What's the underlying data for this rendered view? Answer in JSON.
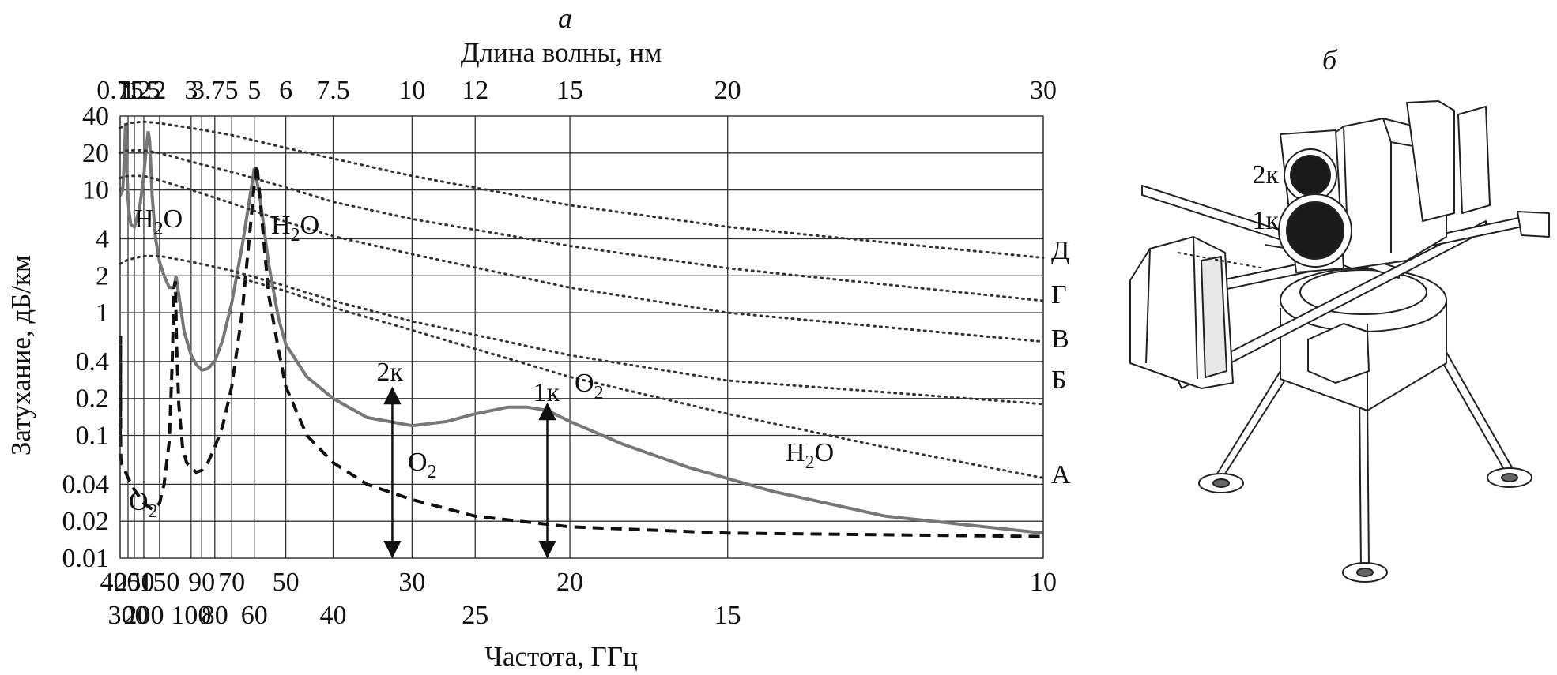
{
  "panel_a_label": "а",
  "panel_b_label": "б",
  "chart_data": {
    "type": "line",
    "title": "",
    "xlabel": "Частота, ГГц",
    "x2label": "Длина волны, нм",
    "ylabel": "Затухание, дБ/км",
    "xscale": "reciprocal",
    "yscale": "log",
    "xlim": [
      400,
      10
    ],
    "ylim": [
      0.01,
      40
    ],
    "grid": true,
    "frequency_ticks_row1": [
      "400",
      "250",
      "150",
      "90",
      "70",
      "50",
      "30",
      "10"
    ],
    "frequency_ticks_row2": [
      "300",
      "200",
      "100",
      "80",
      "60",
      "40",
      "25",
      "15"
    ],
    "frequency_tick_values": [
      400,
      300,
      250,
      200,
      150,
      100,
      90,
      80,
      70,
      60,
      50,
      40,
      30,
      25,
      20,
      15,
      10
    ],
    "frequency_tick_20_label": "20",
    "wavelength_tick_labels": [
      "0.75",
      "1",
      "1.2",
      "1.5",
      "2",
      "3",
      "3.75",
      "5",
      "6",
      "7.5",
      "10",
      "12",
      "15",
      "20",
      "30"
    ],
    "y_tick_labels": [
      "40",
      "20",
      "10",
      "4",
      "2",
      "1",
      "0.4",
      "0.2",
      "0.1",
      "0.04",
      "0.02",
      "0.01"
    ],
    "series": [
      {
        "style": "solid",
        "color": "#777777",
        "x": [
          400,
          380,
          360,
          340,
          330,
          325,
          320,
          310,
          300,
          290,
          275,
          250,
          220,
          200,
          190,
          183,
          178,
          170,
          160,
          150,
          140,
          130,
          122,
          119,
          115,
          108,
          100,
          95,
          90,
          85,
          80,
          75,
          70,
          65,
          62,
          60,
          58,
          55,
          52,
          50,
          45,
          40,
          35,
          30,
          27,
          25,
          23,
          22,
          21,
          20,
          18,
          16,
          14,
          12,
          10
        ],
        "y": [
          10.5,
          9.5,
          10.0,
          18.0,
          30.0,
          35.0,
          30.0,
          14.0,
          8.5,
          6.5,
          5.2,
          5.0,
          7.0,
          13.0,
          22.0,
          30.0,
          25.0,
          9.0,
          4.0,
          2.6,
          2.0,
          1.6,
          1.6,
          2.0,
          1.4,
          0.7,
          0.45,
          0.38,
          0.34,
          0.35,
          0.4,
          0.6,
          1.2,
          3.5,
          8.0,
          15.0,
          9.0,
          2.5,
          0.9,
          0.55,
          0.3,
          0.2,
          0.14,
          0.12,
          0.13,
          0.15,
          0.17,
          0.17,
          0.16,
          0.13,
          0.085,
          0.055,
          0.035,
          0.022,
          0.016
        ]
      },
      {
        "style": "dashed",
        "color": "#111111",
        "x": [
          400,
          397,
          395,
          393,
          392,
          390,
          385,
          370,
          350,
          300,
          250,
          200,
          170,
          150,
          140,
          130,
          125,
          122,
          120,
          118,
          115,
          110,
          105,
          100,
          95,
          90,
          85,
          80,
          75,
          70,
          65,
          62,
          60,
          59,
          57,
          55,
          52,
          50,
          45,
          40,
          35,
          30,
          25,
          20,
          15,
          12,
          10
        ],
        "y": [
          0.1,
          0.12,
          0.65,
          0.12,
          0.08,
          0.065,
          0.062,
          0.058,
          0.055,
          0.045,
          0.036,
          0.028,
          0.025,
          0.028,
          0.04,
          0.09,
          0.4,
          1.6,
          1.8,
          0.5,
          0.18,
          0.08,
          0.06,
          0.055,
          0.05,
          0.052,
          0.06,
          0.08,
          0.12,
          0.25,
          1.0,
          4.0,
          11.0,
          16.0,
          5.0,
          1.4,
          0.5,
          0.25,
          0.1,
          0.06,
          0.04,
          0.03,
          0.022,
          0.018,
          0.016,
          0.0155,
          0.015
        ]
      },
      {
        "style": "dotted",
        "name": "Д",
        "x": [
          400,
          300,
          200,
          150,
          100,
          70,
          50,
          40,
          30,
          20,
          15,
          10
        ],
        "y": [
          32,
          35,
          36,
          35,
          32,
          28,
          22,
          18,
          13,
          7.5,
          5.0,
          2.8
        ]
      },
      {
        "style": "dotted",
        "name": "Г",
        "x": [
          400,
          300,
          200,
          150,
          100,
          70,
          50,
          40,
          30,
          20,
          15,
          10
        ],
        "y": [
          20,
          21,
          21,
          20,
          17,
          14,
          10.5,
          8.0,
          5.8,
          3.5,
          2.3,
          1.25
        ]
      },
      {
        "style": "dotted",
        "name": "В",
        "x": [
          400,
          300,
          200,
          150,
          100,
          70,
          50,
          40,
          30,
          20,
          15,
          10
        ],
        "y": [
          12.5,
          13,
          13,
          12,
          10,
          7.8,
          5.5,
          4.2,
          3.0,
          1.6,
          1.0,
          0.58
        ]
      },
      {
        "style": "dotted",
        "name": "Б",
        "x": [
          400,
          300,
          200,
          150,
          100,
          70,
          50,
          40,
          30,
          20,
          15,
          10
        ],
        "y": [
          2.5,
          2.7,
          2.9,
          2.9,
          2.6,
          2.2,
          1.65,
          1.25,
          0.85,
          0.45,
          0.28,
          0.18
        ]
      },
      {
        "style": "dotted",
        "name": "А",
        "x": [
          70,
          50,
          40,
          30,
          20,
          15,
          12,
          10
        ],
        "y": [
          2.0,
          1.5,
          1.1,
          0.72,
          0.3,
          0.15,
          0.08,
          0.045
        ]
      }
    ],
    "series_labels": [
      "Д",
      "Г",
      "В",
      "Б",
      "А"
    ],
    "annotations": {
      "h2o": "H2O",
      "o2": "O2",
      "h2o_parts": {
        "main": "H",
        "sub": "2",
        "tail": "O"
      },
      "o2_parts": {
        "main": "O",
        "sub": "2"
      },
      "channel_2k": "2к",
      "channel_1k": "1к"
    },
    "channel_arrows": [
      {
        "label": "2к",
        "frequency": 32
      },
      {
        "label": "1к",
        "frequency": 21
      }
    ]
  },
  "panel_b": {
    "channel_2k": "2к",
    "channel_1k": "1к"
  }
}
